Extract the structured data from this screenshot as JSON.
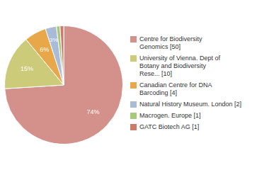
{
  "chart_data": {
    "type": "pie",
    "categories": [
      "Centre for Biodiversity\nGenomics [50]",
      "University of Vienna. Dept of\nBotany and Biodiversity\nRese... [10]",
      "Canadian Centre for DNA\nBarcoding [4]",
      "Natural History Museum. London [2]",
      "Macrogen. Europe [1]",
      "GATC Biotech AG [1]"
    ],
    "values": [
      74,
      15,
      6,
      3,
      1,
      1
    ],
    "value_labels": [
      "74%",
      "15%",
      "6%",
      "3%",
      null,
      null
    ],
    "colors": [
      "#d4908a",
      "#cccb7a",
      "#e8a84a",
      "#a8bcd8",
      "#a8c87a",
      "#cc7a6a"
    ],
    "data_labels": true,
    "legend": "right"
  }
}
